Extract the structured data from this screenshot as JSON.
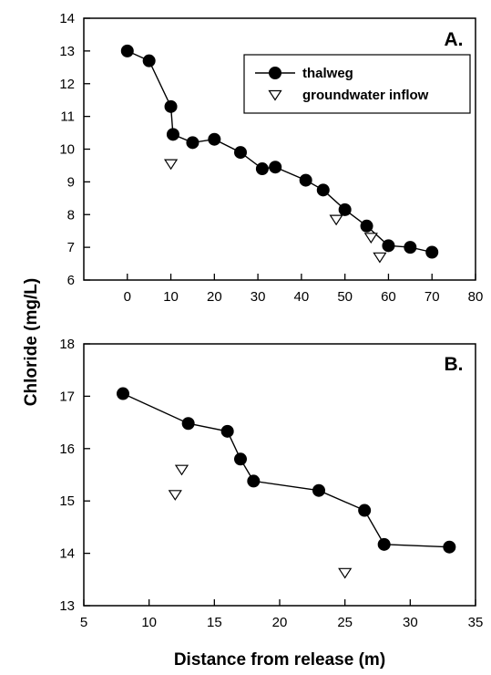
{
  "ylabel": "Chloride (mg/L)",
  "chart_data": [
    {
      "type": "line",
      "panel_label": "A.",
      "xlabel": "",
      "xlim": [
        -10,
        80
      ],
      "ylim": [
        6,
        14
      ],
      "xticks": [
        0,
        10,
        20,
        30,
        40,
        50,
        60,
        70,
        80
      ],
      "yticks": [
        6,
        7,
        8,
        9,
        10,
        11,
        12,
        13,
        14
      ],
      "legend": "top-right",
      "series": [
        {
          "name": "thalweg",
          "marker": "filled-circle",
          "line": true,
          "x": [
            0,
            5,
            10,
            10.5,
            15,
            20,
            26,
            31,
            34,
            41,
            45,
            50,
            55,
            60,
            65,
            70
          ],
          "y": [
            13.0,
            12.7,
            11.3,
            10.45,
            10.2,
            10.3,
            9.9,
            9.4,
            9.45,
            9.05,
            8.75,
            8.15,
            7.65,
            7.05,
            7.0,
            6.85
          ]
        },
        {
          "name": "groundwater inflow",
          "marker": "open-triangle-down",
          "line": false,
          "x": [
            10,
            48,
            56,
            58
          ],
          "y": [
            9.55,
            7.85,
            7.3,
            6.7
          ]
        }
      ]
    },
    {
      "type": "line",
      "panel_label": "B.",
      "xlabel": "Distance from release (m)",
      "xlim": [
        5,
        35
      ],
      "ylim": [
        13,
        18
      ],
      "xticks": [
        5,
        10,
        15,
        20,
        25,
        30,
        35
      ],
      "yticks": [
        13,
        14,
        15,
        16,
        17,
        18
      ],
      "series": [
        {
          "marker": "filled-circle",
          "line": true,
          "x": [
            8,
            13,
            16,
            17,
            18,
            23,
            26.5,
            28,
            33
          ],
          "y": [
            17.05,
            16.48,
            16.33,
            15.8,
            15.38,
            15.2,
            14.82,
            14.17,
            14.12
          ]
        },
        {
          "marker": "open-triangle-down",
          "line": false,
          "x": [
            12,
            12.5,
            25
          ],
          "y": [
            15.12,
            15.6,
            13.63
          ]
        }
      ]
    }
  ]
}
